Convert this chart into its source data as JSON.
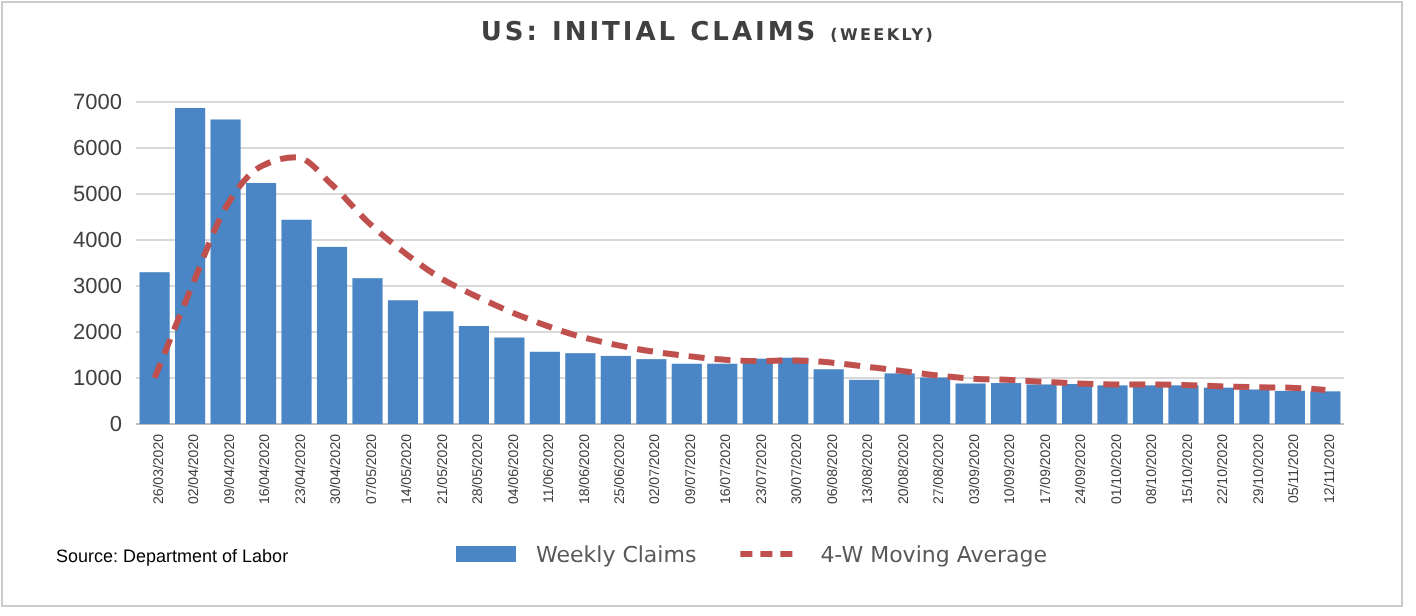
{
  "chart_data": {
    "type": "bar",
    "title": "US: INITIAL CLAIMS",
    "subtitle": "(WEEKLY)",
    "categories": [
      "26/03/2020",
      "02/04/2020",
      "09/04/2020",
      "16/04/2020",
      "23/04/2020",
      "30/04/2020",
      "07/05/2020",
      "14/05/2020",
      "21/05/2020",
      "28/05/2020",
      "04/06/2020",
      "11/06/2020",
      "18/06/2020",
      "25/06/2020",
      "02/07/2020",
      "09/07/2020",
      "16/07/2020",
      "23/07/2020",
      "30/07/2020",
      "06/08/2020",
      "13/08/2020",
      "20/08/2020",
      "27/08/2020",
      "03/09/2020",
      "10/09/2020",
      "17/09/2020",
      "24/09/2020",
      "01/10/2020",
      "08/10/2020",
      "15/10/2020",
      "22/10/2020",
      "29/10/2020",
      "05/11/2020",
      "12/11/2020"
    ],
    "series": [
      {
        "name": "Weekly Claims",
        "color": "#4a86c5",
        "values": [
          3300,
          6870,
          6620,
          5240,
          4440,
          3850,
          3170,
          2690,
          2450,
          2130,
          1880,
          1570,
          1540,
          1480,
          1410,
          1310,
          1310,
          1420,
          1440,
          1190,
          960,
          1100,
          1010,
          880,
          890,
          860,
          870,
          840,
          840,
          840,
          790,
          750,
          720,
          710
        ]
      },
      {
        "name": "4-W Moving Average",
        "type": "line",
        "color": "#c0504d",
        "line_style": "dashed",
        "values": [
          1000,
          2900,
          4700,
          5600,
          5800,
          5200,
          4400,
          3750,
          3200,
          2800,
          2450,
          2150,
          1900,
          1720,
          1580,
          1480,
          1400,
          1370,
          1380,
          1340,
          1250,
          1160,
          1060,
          990,
          960,
          920,
          880,
          860,
          860,
          850,
          820,
          800,
          790,
          740
        ]
      }
    ],
    "ylim": [
      0,
      7000
    ],
    "yticks": [
      0,
      1000,
      2000,
      3000,
      4000,
      5000,
      6000,
      7000
    ],
    "grid": "y",
    "legend": "bottom",
    "annotations": [
      "Source: Department of Labor"
    ]
  }
}
